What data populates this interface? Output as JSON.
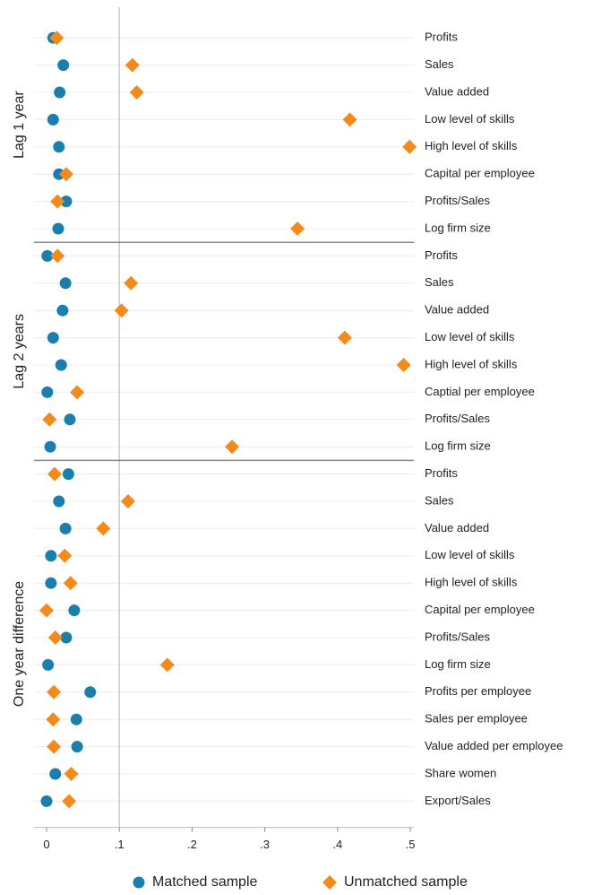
{
  "chart_data": [
    {
      "type": "dot",
      "panel_label": "Lag 1 year",
      "categories": [
        "Profits",
        "Sales",
        "Value added",
        "Low level of skills",
        "High level of skills",
        "Capital per employee",
        "Profits/Sales",
        "Log firm size"
      ],
      "series": [
        {
          "name": "Matched sample",
          "color": "#1b7fae",
          "values": [
            0.009,
            0.023,
            0.018,
            0.009,
            0.017,
            0.017,
            0.027,
            0.016
          ]
        },
        {
          "name": "Unmatched sample",
          "color": "#f28a1c",
          "values": [
            0.014,
            0.118,
            0.124,
            0.417,
            0.499,
            0.027,
            0.015,
            0.345
          ]
        }
      ],
      "xlim": [
        0,
        0.5
      ],
      "refline": 0.1
    },
    {
      "type": "dot",
      "panel_label": "Lag 2 years",
      "categories": [
        "Profits",
        "Sales",
        "Value added",
        "Low level of skills",
        "High level of skills",
        "Captial per employee",
        "Profits/Sales",
        "Log firm size"
      ],
      "series": [
        {
          "name": "Matched sample",
          "color": "#1b7fae",
          "values": [
            0.001,
            0.026,
            0.022,
            0.009,
            0.02,
            0.001,
            0.032,
            0.005
          ]
        },
        {
          "name": "Unmatched sample",
          "color": "#f28a1c",
          "values": [
            0.015,
            0.116,
            0.103,
            0.41,
            0.491,
            0.042,
            0.004,
            0.255
          ]
        }
      ],
      "xlim": [
        0,
        0.5
      ],
      "refline": 0.1
    },
    {
      "type": "dot",
      "panel_label": "One year difference",
      "categories": [
        "Profits",
        "Sales",
        "Value added",
        "Low level of skills",
        "High level of skills",
        "Capital per employee",
        "Profits/Sales",
        "Log firm size",
        "Profits per employee",
        "Sales per employee",
        "Value added per employee",
        "Share women",
        "Export/Sales"
      ],
      "series": [
        {
          "name": "Matched sample",
          "color": "#1b7fae",
          "values": [
            0.03,
            0.017,
            0.026,
            0.006,
            0.006,
            0.038,
            0.027,
            0.002,
            0.06,
            0.041,
            0.042,
            0.012,
            0
          ]
        },
        {
          "name": "Unmatched sample",
          "color": "#f28a1c",
          "values": [
            0.011,
            0.112,
            0.078,
            0.025,
            0.033,
            0,
            0.012,
            0.166,
            0.01,
            0.009,
            0.01,
            0.034,
            0.031
          ]
        }
      ],
      "xlim": [
        0,
        0.5
      ],
      "refline": 0.1,
      "xticks": [
        0,
        {
          "value": 0.1,
          "label": ".1"
        },
        {
          "value": 0.2,
          "label": ".2"
        },
        {
          "value": 0.3,
          "label": ".3"
        },
        {
          "value": 0.4,
          "label": ".4"
        },
        {
          "value": 0.5,
          "label": ".5"
        }
      ]
    }
  ]
}
